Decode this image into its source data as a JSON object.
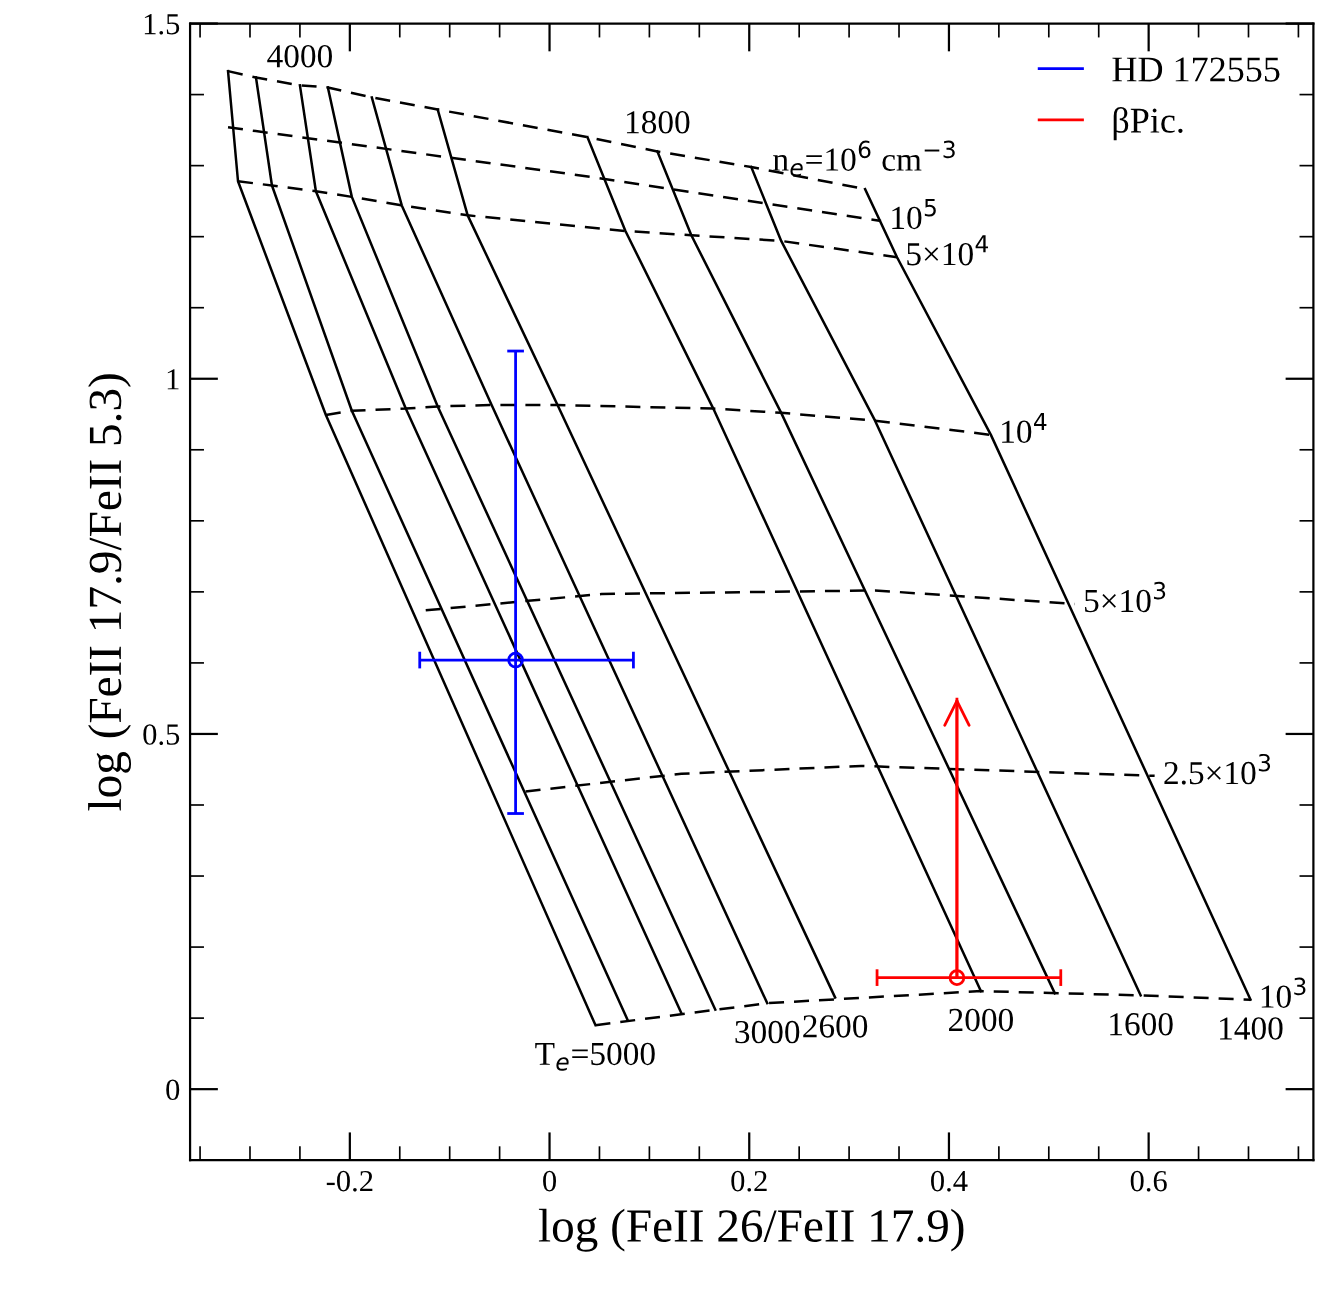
{
  "chart_data": {
    "type": "line",
    "xlabel": "log (FeII 26/FeII 17.9)",
    "ylabel": "log (FeII 17.9/FeII 5.3)",
    "xlim": [
      -0.36,
      0.765
    ],
    "ylim": [
      -0.1,
      1.5
    ],
    "xticks": [
      -0.2,
      0,
      0.2,
      0.4,
      0.6
    ],
    "yticks": [
      0,
      0.5,
      1,
      1.5
    ],
    "grid": false,
    "legend": "top right",
    "series": [
      {
        "color": "#000000",
        "line_style": "solid",
        "x": [
          -0.322,
          -0.312,
          -0.224,
          0.046
        ],
        "values": [
          1.433,
          1.278,
          0.949,
          0.09
        ]
      },
      {
        "color": "#000000",
        "line_style": "solid",
        "x": [
          -0.294,
          -0.278,
          -0.198,
          0.078
        ],
        "values": [
          1.424,
          1.272,
          0.955,
          0.098
        ]
      },
      {
        "color": "#000000",
        "line_style": "solid",
        "x": [
          -0.25,
          -0.234,
          -0.144,
          0.132
        ],
        "values": [
          1.413,
          1.264,
          0.958,
          0.107
        ]
      },
      {
        "color": "#000000",
        "line_style": "solid",
        "x": [
          -0.222,
          -0.198,
          -0.112,
          0.166
        ],
        "values": [
          1.41,
          1.256,
          0.961,
          0.112
        ]
      },
      {
        "color": "#000000",
        "line_style": "solid",
        "x": [
          -0.178,
          -0.148,
          -0.058,
          0.218
        ],
        "values": [
          1.396,
          1.244,
          0.963,
          0.121
        ]
      },
      {
        "color": "#000000",
        "line_style": "solid",
        "x": [
          -0.112,
          -0.082,
          0.008,
          0.286
        ],
        "values": [
          1.379,
          1.23,
          0.963,
          0.129
        ]
      },
      {
        "color": "#000000",
        "line_style": "solid",
        "x": [
          0.038,
          0.076,
          0.164,
          0.432
        ],
        "values": [
          1.34,
          1.208,
          0.958,
          0.138
        ]
      },
      {
        "color": "#000000",
        "line_style": "solid",
        "x": [
          0.108,
          0.142,
          0.232,
          0.506
        ],
        "values": [
          1.32,
          1.202,
          0.952,
          0.135
        ]
      },
      {
        "color": "#000000",
        "line_style": "solid",
        "x": [
          0.202,
          0.232,
          0.326,
          0.592
        ],
        "values": [
          1.298,
          1.194,
          0.941,
          0.132
        ]
      },
      {
        "color": "#000000",
        "line_style": "solid",
        "x": [
          0.316,
          0.348,
          0.442,
          0.702
        ],
        "values": [
          1.267,
          1.171,
          0.921,
          0.126
        ]
      },
      {
        "color": "#000000",
        "line_style": "dashed",
        "x": [
          -0.322,
          -0.294,
          -0.25,
          -0.222,
          -0.178,
          -0.112,
          0.038,
          0.108,
          0.202,
          0.316
        ],
        "values": [
          1.433,
          1.424,
          1.413,
          1.41,
          1.396,
          1.379,
          1.34,
          1.32,
          1.298,
          1.267
        ]
      },
      {
        "color": "#000000",
        "line_style": "dashed",
        "x": [
          -0.322,
          0.042,
          0.332
        ],
        "values": [
          1.354,
          1.284,
          1.222
        ]
      },
      {
        "color": "#000000",
        "line_style": "dashed",
        "x": [
          -0.312,
          -0.278,
          -0.234,
          -0.198,
          -0.148,
          -0.082,
          0.076,
          0.142,
          0.232,
          0.348
        ],
        "values": [
          1.278,
          1.272,
          1.264,
          1.256,
          1.244,
          1.23,
          1.208,
          1.202,
          1.194,
          1.171
        ]
      },
      {
        "color": "#000000",
        "line_style": "dashed",
        "x": [
          -0.224,
          -0.198,
          -0.144,
          -0.112,
          -0.058,
          0.008,
          0.164,
          0.232,
          0.326,
          0.442
        ],
        "values": [
          0.949,
          0.955,
          0.958,
          0.961,
          0.963,
          0.963,
          0.958,
          0.952,
          0.941,
          0.921
        ]
      },
      {
        "color": "#000000",
        "line_style": "dashed",
        "x": [
          -0.124,
          0.052,
          0.326,
          0.526
        ],
        "values": [
          0.674,
          0.697,
          0.702,
          0.683
        ]
      },
      {
        "color": "#000000",
        "line_style": "dashed",
        "x": [
          -0.024,
          0.132,
          0.312,
          0.606
        ],
        "values": [
          0.419,
          0.444,
          0.455,
          0.441
        ]
      },
      {
        "color": "#000000",
        "line_style": "dashed",
        "x": [
          0.046,
          0.218,
          0.432,
          0.592,
          0.702
        ],
        "values": [
          0.09,
          0.121,
          0.138,
          0.132,
          0.126
        ]
      },
      {
        "type": "scatter",
        "name": "HD 172555",
        "color": "#0000ff",
        "marker": "circle",
        "x": [
          -0.034
        ],
        "values": [
          0.604
        ],
        "errors": [
          [
            0.388,
            1.039
          ]
        ],
        "xerrors": [
          [
            -0.13,
            0.084
          ]
        ]
      },
      {
        "type": "scatter",
        "name": "βPic.",
        "color": "#ff0000",
        "marker": "circle",
        "x": [
          0.408
        ],
        "values": [
          0.157
        ],
        "errors": [
          [
            0.157,
            0.551
          ]
        ],
        "xerrors": [
          [
            0.328,
            0.512
          ]
        ]
      }
    ],
    "annotations": [
      {
        "text": "4000",
        "x": -0.25,
        "y": 1.413
      },
      {
        "text": "1800",
        "x": 0.108,
        "y": 1.32
      },
      {
        "text": "n$_{e}$=10$^{6}$ cm$^{−3}$",
        "x": 0.316,
        "y": 1.267
      },
      {
        "text": "10$^{5}$",
        "x": 0.332,
        "y": 1.222
      },
      {
        "text": "5×10$^{4}$",
        "x": 0.348,
        "y": 1.171
      },
      {
        "text": "10$^{4}$",
        "x": 0.442,
        "y": 0.921
      },
      {
        "text": "5×10$^{3}$",
        "x": 0.526,
        "y": 0.683
      },
      {
        "text": "2.5×10$^{3}$",
        "x": 0.606,
        "y": 0.441
      },
      {
        "text": "10$^{3}$",
        "x": 0.702,
        "y": 0.126
      },
      {
        "text": "T$_{e}$=5000",
        "x": 0.046,
        "y": 0.09
      },
      {
        "text": "3000",
        "x": 0.218,
        "y": 0.121
      },
      {
        "text": "2600",
        "x": 0.286,
        "y": 0.129
      },
      {
        "text": "2000",
        "x": 0.432,
        "y": 0.138
      },
      {
        "text": "1600",
        "x": 0.592,
        "y": 0.132
      },
      {
        "text": "1400",
        "x": 0.702,
        "y": 0.126
      }
    ]
  }
}
